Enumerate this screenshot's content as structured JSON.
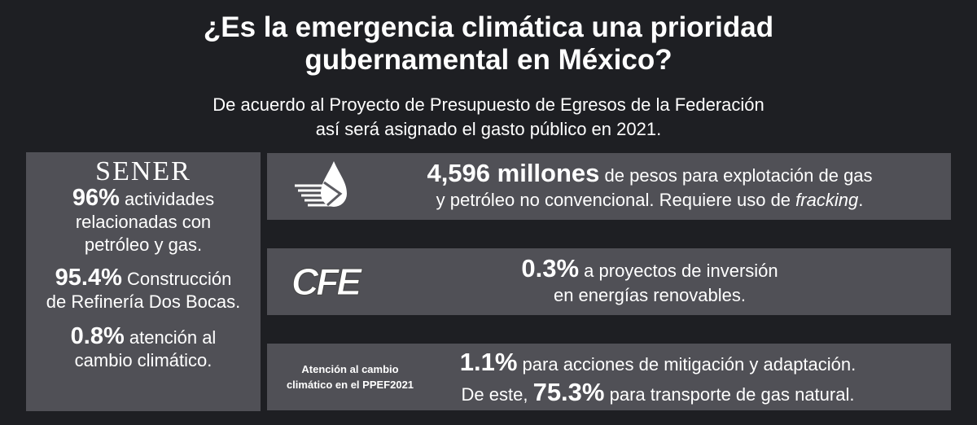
{
  "header": {
    "title_lines": [
      "¿Es la emergencia climática una prioridad",
      "gubernamental en México?"
    ],
    "subtitle_lines": [
      "De acuerdo al Proyecto de Presupuesto de Egresos de la Federación",
      "así será asignado el gasto público en 2021."
    ]
  },
  "sener": {
    "logo": "SENER",
    "items": [
      {
        "value": "96%",
        "lines": [
          "actividades",
          "relacionadas con",
          "petróleo y gas."
        ]
      },
      {
        "value": "95.4%",
        "lines": [
          "Construcción",
          "de Refinería Dos Bocas."
        ]
      },
      {
        "value": "0.8%",
        "lines": [
          "atención al",
          "cambio climático."
        ]
      }
    ]
  },
  "cards": [
    {
      "highlight": "4,596 millones",
      "line1": "de pesos para explotación de gas",
      "line2": "y petróleo no convencional. Requiere uso de",
      "emphasis": "fracking",
      "end": "."
    },
    {
      "logo": "CFE",
      "highlight": "0.3%",
      "line1": "a proyectos de inversión",
      "line2": "en energías renovables."
    },
    {
      "label_lines": [
        "Atención al cambio",
        "climático en el PPEF2021"
      ],
      "highlight": "1.1%",
      "line1": "para acciones de mitigación y adaptación.",
      "line2_start": "De este,",
      "highlight2": "75.3%",
      "line2_end": "para transporte de gas natural."
    }
  ]
}
